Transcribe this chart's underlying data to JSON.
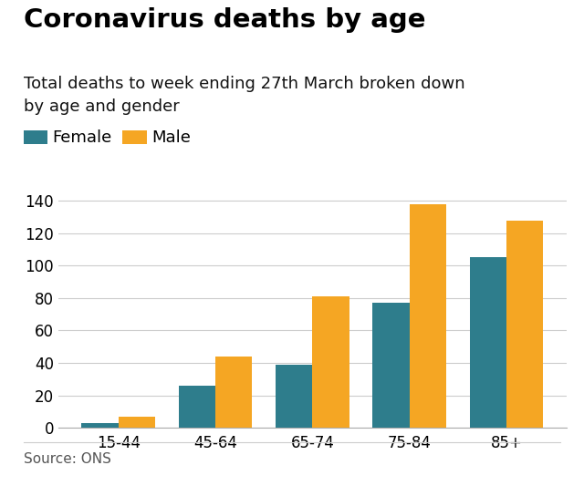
{
  "title": "Coronavirus deaths by age",
  "subtitle": "Total deaths to week ending 27th March broken down\nby age and gender",
  "source": "Source: ONS",
  "categories": [
    "15-44",
    "45-64",
    "65-74",
    "75-84",
    "85+"
  ],
  "female_values": [
    3,
    26,
    39,
    77,
    105
  ],
  "male_values": [
    7,
    44,
    81,
    138,
    128
  ],
  "female_color": "#2e7d8c",
  "male_color": "#f5a623",
  "ylim": [
    0,
    150
  ],
  "yticks": [
    0,
    20,
    40,
    60,
    80,
    100,
    120,
    140
  ],
  "background_color": "#ffffff",
  "title_fontsize": 21,
  "subtitle_fontsize": 13,
  "legend_fontsize": 13,
  "tick_fontsize": 12,
  "source_fontsize": 11,
  "bar_width": 0.38
}
